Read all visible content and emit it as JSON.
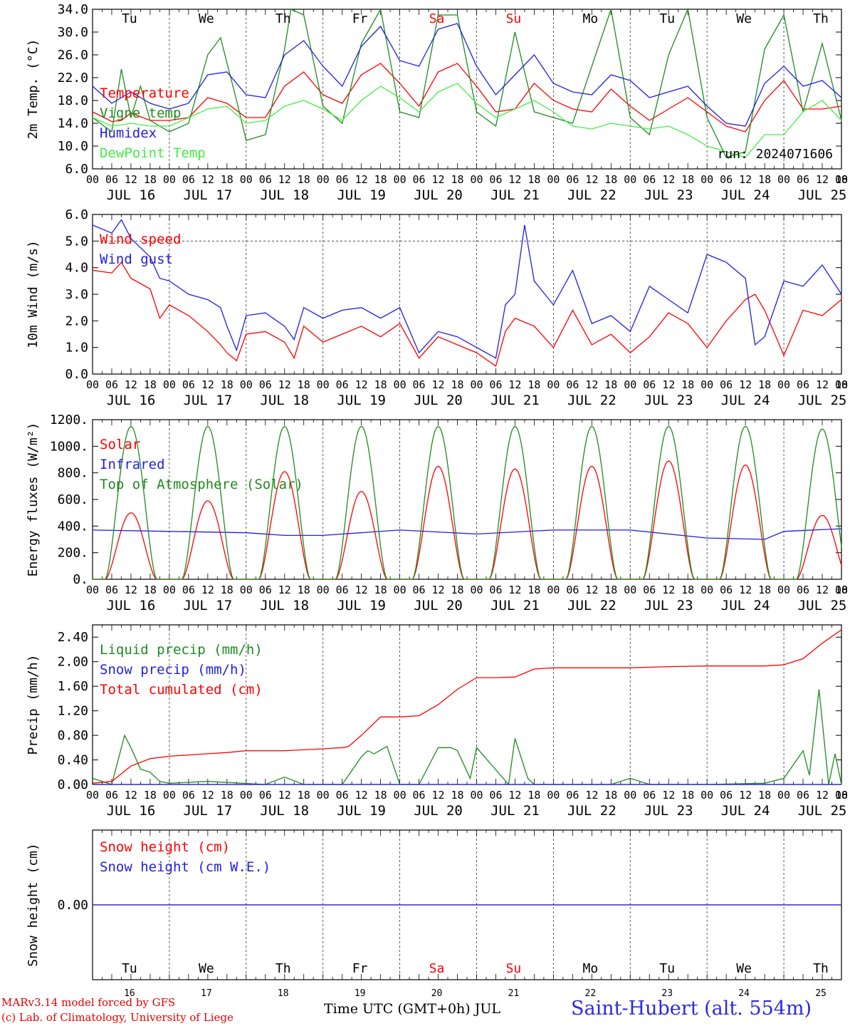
{
  "chart_data": [
    {
      "type": "line",
      "ylabel": "2m Temp. (°C)",
      "ylim": [
        6.0,
        34.0
      ],
      "yticks": [
        "6.0",
        "10.0",
        "14.0",
        "18.0",
        "22.0",
        "26.0",
        "30.0",
        "34.0"
      ],
      "x_unit": "hours since 2024-07-16 00 UTC",
      "annotation": "run: 2024071606",
      "series": [
        {
          "name": "Temperature",
          "color": "#ff0000",
          "x": [
            0,
            6,
            9,
            12,
            18,
            24,
            30,
            36,
            42,
            48,
            54,
            60,
            66,
            72,
            78,
            84,
            90,
            96,
            102,
            108,
            114,
            120,
            126,
            132,
            138,
            144,
            150,
            156,
            162,
            168,
            174,
            180,
            186,
            192,
            198,
            204,
            210,
            216,
            222,
            228,
            234
          ],
          "y": [
            16.0,
            14.3,
            14.5,
            15.8,
            14.5,
            14.5,
            15.0,
            18.5,
            17.5,
            15.0,
            15.0,
            20.5,
            23.0,
            19.0,
            17.5,
            22.5,
            24.5,
            21.0,
            17.0,
            23.0,
            24.5,
            20.5,
            16.0,
            16.5,
            21.0,
            18.0,
            16.5,
            16.0,
            20.0,
            17.0,
            14.5,
            16.5,
            18.5,
            16.0,
            13.5,
            12.5,
            18.0,
            21.5,
            16.5,
            16.5,
            17.0
          ]
        },
        {
          "name": "Vigne temp",
          "color": "#1f8a1f",
          "x": [
            0,
            6,
            9,
            12,
            15,
            18,
            24,
            30,
            36,
            40,
            45,
            48,
            54,
            60,
            62,
            66,
            72,
            78,
            84,
            90,
            96,
            102,
            108,
            114,
            120,
            126,
            132,
            138,
            144,
            150,
            156,
            162,
            168,
            174,
            180,
            186,
            192,
            198,
            204,
            210,
            216,
            222,
            228,
            234
          ],
          "y": [
            15.0,
            12.5,
            23.5,
            15.0,
            20.5,
            14.5,
            12.5,
            14.0,
            26.0,
            29.0,
            18.0,
            11.0,
            12.0,
            27.0,
            34.0,
            33.0,
            17.0,
            14.0,
            28.0,
            34.0,
            16.0,
            15.0,
            33.0,
            33.0,
            16.0,
            13.5,
            30.0,
            16.0,
            15.0,
            14.0,
            24.0,
            34.0,
            15.0,
            12.0,
            26.0,
            34.0,
            15.0,
            8.0,
            9.0,
            27.0,
            33.0,
            16.0,
            28.0,
            14.5
          ]
        },
        {
          "name": "Humidex",
          "color": "#1f1fe0",
          "x": [
            0,
            6,
            12,
            18,
            24,
            30,
            36,
            42,
            48,
            54,
            60,
            66,
            72,
            78,
            84,
            90,
            96,
            102,
            108,
            114,
            120,
            126,
            132,
            138,
            144,
            150,
            156,
            162,
            168,
            174,
            180,
            186,
            192,
            198,
            204,
            210,
            216,
            222,
            228,
            234
          ],
          "y": [
            20.5,
            17.5,
            19.5,
            17.5,
            16.5,
            17.5,
            22.5,
            23.0,
            19.0,
            18.5,
            26.0,
            28.5,
            24.0,
            20.5,
            27.5,
            31.0,
            25.0,
            24.0,
            30.5,
            31.5,
            24.0,
            19.0,
            22.5,
            26.0,
            21.0,
            19.5,
            19.0,
            22.5,
            21.5,
            18.5,
            19.5,
            20.5,
            17.0,
            14.0,
            13.5,
            21.0,
            24.0,
            20.5,
            21.5,
            18.5
          ]
        },
        {
          "name": "DewPoint Temp",
          "color": "#44ee44",
          "x": [
            0,
            6,
            12,
            18,
            24,
            30,
            36,
            42,
            48,
            54,
            60,
            66,
            72,
            78,
            84,
            90,
            96,
            102,
            108,
            114,
            120,
            126,
            132,
            138,
            144,
            150,
            156,
            162,
            168,
            174,
            180,
            186,
            192,
            198,
            204,
            210,
            216,
            222,
            228,
            234
          ],
          "y": [
            15.0,
            13.5,
            14.0,
            13.5,
            13.5,
            15.0,
            16.5,
            17.0,
            14.0,
            14.5,
            17.0,
            18.0,
            16.5,
            14.5,
            18.0,
            20.5,
            18.5,
            16.0,
            19.5,
            21.0,
            17.5,
            15.0,
            16.5,
            18.0,
            16.0,
            13.5,
            13.0,
            14.0,
            13.5,
            13.0,
            13.5,
            12.0,
            10.0,
            9.0,
            8.0,
            12.0,
            12.0,
            16.0,
            18.0,
            14.5
          ]
        }
      ]
    },
    {
      "type": "line",
      "ylabel": "10m Wind (m/s)",
      "ylim": [
        0.0,
        6.0
      ],
      "yticks": [
        "0.0",
        "1.0",
        "2.0",
        "3.0",
        "4.0",
        "5.0",
        "6.0"
      ],
      "series": [
        {
          "name": "Wind speed",
          "color": "#ff0000",
          "x": [
            0,
            6,
            9,
            12,
            18,
            21,
            24,
            30,
            36,
            40,
            42,
            45,
            48,
            54,
            60,
            63,
            66,
            72,
            78,
            84,
            90,
            96,
            102,
            108,
            114,
            120,
            126,
            129,
            132,
            138,
            144,
            150,
            156,
            162,
            168,
            174,
            180,
            186,
            192,
            198,
            204,
            207,
            210,
            216,
            222,
            228,
            234
          ],
          "y": [
            3.9,
            3.8,
            4.2,
            3.6,
            3.2,
            2.1,
            2.6,
            2.2,
            1.6,
            1.1,
            0.8,
            0.5,
            1.5,
            1.6,
            1.2,
            0.6,
            1.8,
            1.2,
            1.5,
            1.8,
            1.4,
            1.9,
            0.6,
            1.4,
            1.1,
            0.8,
            0.3,
            1.6,
            2.1,
            1.8,
            1.0,
            2.4,
            1.1,
            1.5,
            0.8,
            1.4,
            2.3,
            1.9,
            1.0,
            2.0,
            2.8,
            3.0,
            2.4,
            0.7,
            2.4,
            2.2,
            2.8
          ]
        },
        {
          "name": "Wind gust",
          "color": "#1f1fe0",
          "x": [
            0,
            6,
            9,
            12,
            18,
            21,
            24,
            30,
            36,
            40,
            42,
            45,
            48,
            54,
            60,
            63,
            66,
            72,
            78,
            84,
            90,
            96,
            102,
            108,
            114,
            120,
            126,
            129,
            132,
            135,
            138,
            144,
            150,
            156,
            162,
            168,
            174,
            180,
            186,
            192,
            198,
            204,
            207,
            210,
            216,
            222,
            228,
            234
          ],
          "y": [
            5.6,
            5.3,
            5.8,
            5.1,
            4.4,
            3.6,
            3.5,
            3.0,
            2.8,
            2.5,
            1.8,
            0.9,
            2.2,
            2.3,
            1.8,
            1.3,
            2.5,
            2.1,
            2.4,
            2.5,
            2.1,
            2.5,
            0.8,
            1.6,
            1.4,
            1.0,
            0.6,
            2.6,
            3.0,
            5.6,
            3.5,
            2.6,
            3.9,
            1.9,
            2.2,
            1.6,
            3.3,
            2.8,
            2.3,
            4.5,
            4.2,
            3.6,
            1.1,
            1.4,
            3.5,
            3.3,
            4.1,
            3.0
          ]
        }
      ]
    },
    {
      "type": "line",
      "ylabel": "Energy fluxes (W/m²)",
      "ylim": [
        0,
        1200
      ],
      "yticks": [
        "0.",
        "200.",
        "400.",
        "600.",
        "800.",
        "1000.",
        "1200."
      ],
      "series": [
        {
          "name": "Solar",
          "color": "#ff0000",
          "daily_peak": [
            500,
            590,
            810,
            660,
            850,
            830,
            850,
            890,
            860,
            480
          ]
        },
        {
          "name": "Infrared",
          "color": "#1f1fe0",
          "x": [
            0,
            24,
            48,
            60,
            72,
            96,
            120,
            144,
            168,
            192,
            210,
            216,
            234
          ],
          "y": [
            370,
            360,
            350,
            330,
            330,
            370,
            340,
            370,
            370,
            310,
            300,
            360,
            380
          ]
        },
        {
          "name": "Top of Atmosphere (Solar)",
          "color": "#1f8a1f",
          "daily_peak": [
            1150,
            1150,
            1150,
            1150,
            1150,
            1150,
            1150,
            1150,
            1150,
            1130
          ]
        }
      ]
    },
    {
      "type": "line",
      "ylabel": "Precip (mm/h)",
      "ylim": [
        0.0,
        2.6
      ],
      "yticks": [
        "0.00",
        "0.40",
        "0.80",
        "1.20",
        "1.60",
        "2.00",
        "2.40"
      ],
      "series": [
        {
          "name": "Liquid precip (mm/h)",
          "color": "#1f8a1f",
          "x": [
            0,
            6,
            10,
            12,
            15,
            18,
            21,
            24,
            36,
            54,
            60,
            66,
            72,
            78,
            84,
            86,
            88,
            92,
            96,
            102,
            108,
            112,
            114,
            118,
            120,
            130,
            132,
            136,
            138,
            144,
            162,
            168,
            174,
            180,
            186,
            192,
            210,
            216,
            222,
            224,
            227,
            230,
            232,
            234
          ],
          "y": [
            0.1,
            0.0,
            0.8,
            0.6,
            0.25,
            0.2,
            0.05,
            0.02,
            0.05,
            0.0,
            0.12,
            0.0,
            0.0,
            0.0,
            0.45,
            0.55,
            0.5,
            0.62,
            0.0,
            0.0,
            0.6,
            0.6,
            0.55,
            0.1,
            0.6,
            0.0,
            0.75,
            0.1,
            0.0,
            0.0,
            0.0,
            0.1,
            0.0,
            0.0,
            0.0,
            0.0,
            0.02,
            0.1,
            0.55,
            0.15,
            1.55,
            0.0,
            0.5,
            0.0
          ]
        },
        {
          "name": "Snow precip (mm/h)",
          "color": "#1f1fe0",
          "x": [
            0,
            234
          ],
          "y": [
            0.0,
            0.0
          ]
        },
        {
          "name": "Total cumulated (cm)",
          "color": "#ff0000",
          "x": [
            0,
            6,
            12,
            18,
            24,
            30,
            36,
            42,
            48,
            60,
            72,
            78,
            80,
            84,
            90,
            96,
            102,
            108,
            114,
            120,
            126,
            132,
            138,
            144,
            156,
            168,
            180,
            192,
            198,
            210,
            216,
            222,
            228,
            234
          ],
          "y": [
            0.02,
            0.05,
            0.3,
            0.42,
            0.46,
            0.48,
            0.5,
            0.52,
            0.55,
            0.55,
            0.58,
            0.6,
            0.62,
            0.8,
            1.1,
            1.1,
            1.12,
            1.3,
            1.55,
            1.74,
            1.74,
            1.75,
            1.88,
            1.9,
            1.9,
            1.9,
            1.92,
            1.93,
            1.93,
            1.93,
            1.95,
            2.05,
            2.3,
            2.52
          ]
        }
      ]
    },
    {
      "type": "line",
      "ylabel": "Snow height (cm)",
      "yticks": [
        "0.00"
      ],
      "series": [
        {
          "name": "Snow height (cm)",
          "color": "#ff0000",
          "x": [
            0,
            234
          ],
          "y": [
            0.0,
            0.0
          ]
        },
        {
          "name": "Snow height (cm W.E.)",
          "color": "#1f1fe0",
          "x": [
            0,
            234
          ],
          "y": [
            0.0,
            0.0
          ]
        }
      ]
    }
  ],
  "x_axis": {
    "hour_labels": [
      "00",
      "06",
      "12",
      "18"
    ],
    "last_hour_label": "00",
    "dates": [
      "JUL 16",
      "JUL 17",
      "JUL 18",
      "JUL 19",
      "JUL 20",
      "JUL 21",
      "JUL 22",
      "JUL 23",
      "JUL 24",
      "JUL 25"
    ],
    "weekdays": [
      "Tu",
      "We",
      "Th",
      "Fr",
      "Sa",
      "Su",
      "Mo",
      "Tu",
      "We",
      "Th"
    ],
    "weekday_colors": [
      "#000000",
      "#000000",
      "#000000",
      "#000000",
      "#ff0000",
      "#ff0000",
      "#000000",
      "#000000",
      "#000000",
      "#000000"
    ],
    "day_numbers": [
      "16",
      "17",
      "18",
      "19",
      "20",
      "21",
      "22",
      "23",
      "24",
      "25"
    ]
  },
  "footer": {
    "credit_line1": "MARv3.14 model forced by GFS",
    "credit_line2": "(c) Lab. of Climatology, University of Liege",
    "xaxis_title": "Time UTC (GMT+0h) JUL",
    "station": "Saint-Hubert (alt. 554m)"
  }
}
